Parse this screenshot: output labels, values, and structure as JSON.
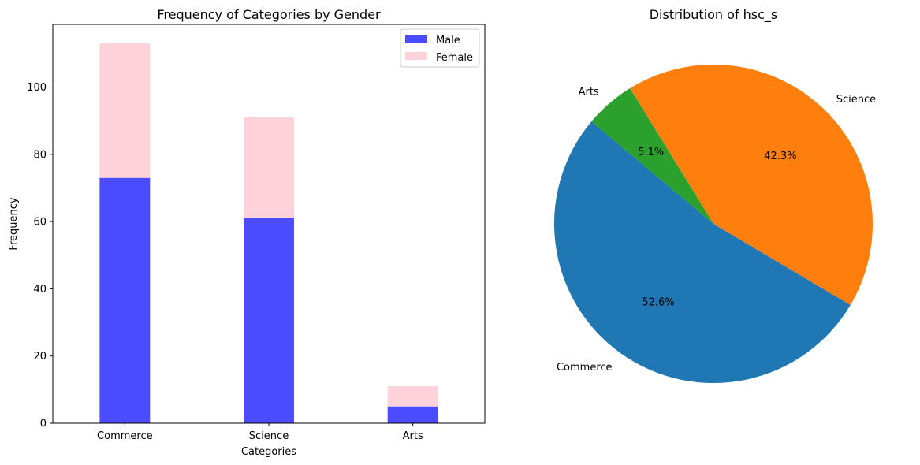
{
  "chart_data": [
    {
      "type": "bar",
      "stacked": true,
      "title": "Frequency of Categories by Gender",
      "xlabel": "Categories",
      "ylabel": "Frequency",
      "categories": [
        "Commerce",
        "Science",
        "Arts"
      ],
      "series": [
        {
          "name": "Male",
          "values": [
            73,
            61,
            5
          ],
          "color": "#4b4bff"
        },
        {
          "name": "Female",
          "values": [
            40,
            30,
            6
          ],
          "color": "#ffd1d9"
        }
      ],
      "ylim": [
        0,
        118.65
      ],
      "yticks": [
        0,
        20,
        40,
        60,
        80,
        100
      ],
      "grid": false,
      "legend_position": "upper right"
    },
    {
      "type": "pie",
      "title": "Distribution of hsc_s",
      "labels": [
        "Commerce",
        "Science",
        "Arts"
      ],
      "values": [
        52.6,
        42.3,
        5.1
      ],
      "percent_labels": [
        "52.6%",
        "42.3%",
        "5.1%"
      ],
      "colors": [
        "#1f77b4",
        "#ff7f0e",
        "#2ca02c"
      ]
    }
  ]
}
